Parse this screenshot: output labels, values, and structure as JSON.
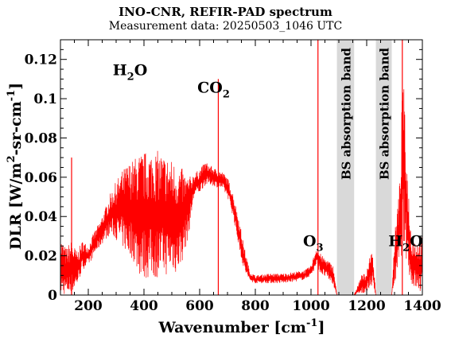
{
  "chart_data": {
    "type": "line",
    "title": "INO-CNR, REFIR-PAD spectrum",
    "subtitle": "Measurement data: 20250503_1046 UTC",
    "xlabel": "Wavenumber [cm-1]",
    "ylabel": "DLR [W/m2-sr-cm-1]",
    "xlim": [
      100,
      1400
    ],
    "ylim": [
      0,
      0.13
    ],
    "xticks": [
      200,
      400,
      600,
      800,
      1000,
      1200,
      1400
    ],
    "yticks": [
      0,
      0.02,
      0.04,
      0.06,
      0.08,
      0.1,
      0.12
    ],
    "grid": false,
    "line_color": "#ff0000",
    "band_color": "#d9d9d9",
    "shaded_bands": [
      {
        "x": [
          1093,
          1155
        ],
        "label": "BS absorption band"
      },
      {
        "x": [
          1233,
          1290
        ],
        "label": "BS absorption band"
      }
    ],
    "annotations": [
      {
        "text": "H2O",
        "x": 350,
        "y": 0.112
      },
      {
        "text": "CO2",
        "x": 650,
        "y": 0.103
      },
      {
        "text": "O3",
        "x": 1008,
        "y": 0.025
      },
      {
        "text": "H2O",
        "x": 1340,
        "y": 0.025
      }
    ],
    "series": [
      {
        "envelope_x": [
          100,
          120,
          140,
          160,
          180,
          200,
          220,
          240,
          260,
          280,
          300,
          320,
          340,
          360,
          380,
          400,
          420,
          440,
          460,
          480,
          500,
          520,
          540,
          560,
          580,
          600,
          620,
          640,
          660,
          680,
          700,
          720,
          740,
          760,
          780,
          800,
          850,
          900,
          950,
          980,
          1000,
          1010,
          1020,
          1030,
          1040,
          1060,
          1080,
          1093,
          1155,
          1180,
          1200,
          1220,
          1233,
          1290,
          1300,
          1320,
          1330,
          1340,
          1360,
          1380,
          1400
        ],
        "envelope_upper": [
          0.03,
          0.024,
          0.028,
          0.022,
          0.028,
          0.025,
          0.032,
          0.037,
          0.044,
          0.052,
          0.058,
          0.063,
          0.067,
          0.069,
          0.072,
          0.073,
          0.074,
          0.074,
          0.073,
          0.071,
          0.069,
          0.067,
          0.064,
          0.06,
          0.062,
          0.064,
          0.068,
          0.066,
          0.064,
          0.063,
          0.06,
          0.052,
          0.04,
          0.025,
          0.012,
          0.01,
          0.011,
          0.011,
          0.012,
          0.013,
          0.015,
          0.02,
          0.025,
          0.022,
          0.02,
          0.018,
          0.015,
          0.0,
          0.0,
          0.01,
          0.012,
          0.025,
          0.0,
          0.0,
          0.03,
          0.06,
          0.12,
          0.08,
          0.03,
          0.028,
          0.03
        ],
        "envelope_lower": [
          0.0,
          0.0,
          0.0,
          0.005,
          0.013,
          0.015,
          0.02,
          0.024,
          0.028,
          0.031,
          0.028,
          0.025,
          0.02,
          0.018,
          0.01,
          0.008,
          0.008,
          0.008,
          0.01,
          0.01,
          0.012,
          0.01,
          0.018,
          0.03,
          0.05,
          0.052,
          0.056,
          0.056,
          0.055,
          0.054,
          0.05,
          0.04,
          0.025,
          0.012,
          0.007,
          0.006,
          0.006,
          0.006,
          0.007,
          0.008,
          0.01,
          0.012,
          0.015,
          0.012,
          0.01,
          0.008,
          0.005,
          0.0,
          0.0,
          0.0,
          0.002,
          0.005,
          0.0,
          0.0,
          0.005,
          0.015,
          0.025,
          0.02,
          0.005,
          0.002,
          0.0
        ]
      }
    ],
    "spikes": [
      {
        "x": 140,
        "y": 0.07
      },
      {
        "x": 667,
        "y": 0.11
      },
      {
        "x": 1025,
        "y": 0.13
      },
      {
        "x": 1328,
        "y": 0.13
      }
    ]
  }
}
